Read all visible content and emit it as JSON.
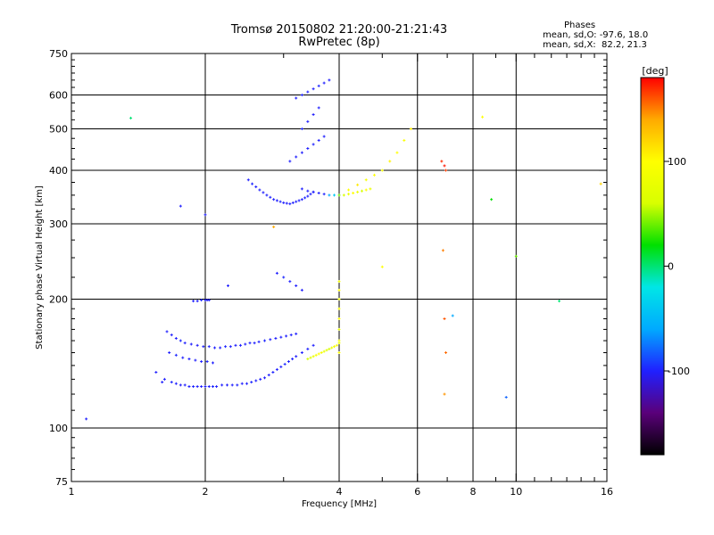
{
  "chart_data": {
    "type": "scatter",
    "title": "Tromsø 20150802 21:20:00-21:21:43",
    "subtitle": "RwPretec (8p)",
    "stats_heading": "Phases",
    "stats_line1": "mean, sd,O: -97.6, 18.0",
    "stats_line2": "mean, sd,X:  82.2, 21.3",
    "xlabel": "Frequency [MHz]",
    "ylabel": "Stationary phase Virtual Height [km]",
    "colorbar_label": "[deg]",
    "x_scale": "log",
    "y_scale": "log",
    "xlim": [
      1,
      16
    ],
    "ylim": [
      75,
      750
    ],
    "xticks": [
      1,
      2,
      4,
      6,
      8,
      10,
      16
    ],
    "xtick_labels": [
      "1",
      "2",
      "4",
      "6",
      "8",
      "10",
      "16"
    ],
    "yticks": [
      75,
      100,
      200,
      300,
      400,
      500,
      600,
      750
    ],
    "ytick_labels": [
      "75",
      "100",
      "200",
      "300",
      "400",
      "500",
      "600",
      "750"
    ],
    "grid_x": [
      2,
      4,
      6,
      8,
      10
    ],
    "grid_y": [
      100,
      200,
      300,
      400,
      500,
      600
    ],
    "colorbar_range": [
      -180,
      180
    ],
    "colorbar_ticks": [
      100,
      0,
      -100
    ],
    "colorbar_tick_labels": [
      "100",
      "0",
      "-100"
    ],
    "colorscale": [
      "#000000",
      "#5a007a",
      "#2020ff",
      "#00aaff",
      "#00e6e6",
      "#00e000",
      "#d8ff00",
      "#ffff00",
      "#ffaa00",
      "#ff0000"
    ],
    "series": [
      {
        "x": [
          1.6,
          1.62,
          1.68,
          1.72,
          1.76,
          1.8,
          1.84,
          1.88,
          1.92,
          1.96,
          2.0,
          2.04,
          2.08,
          2.12,
          2.18,
          2.24,
          2.3,
          2.36,
          2.42,
          2.48,
          2.54,
          2.6,
          2.66,
          2.72,
          2.78,
          2.84,
          2.9,
          2.96,
          3.02,
          3.08,
          3.14,
          3.2,
          3.3,
          3.4,
          3.5
        ],
        "y": [
          128,
          130,
          128,
          127,
          126,
          126,
          125,
          125,
          125,
          125,
          125,
          125,
          125,
          125,
          126,
          126,
          126,
          126,
          127,
          127,
          128,
          129,
          130,
          131,
          133,
          135,
          137,
          139,
          141,
          143,
          145,
          147,
          150,
          153,
          156
        ],
        "phase": [
          -100,
          -100,
          -98,
          -100,
          -102,
          -100,
          -100,
          -99,
          -100,
          -101,
          -100,
          -100,
          -98,
          -100,
          -100,
          -101,
          -100,
          -99,
          -100,
          -100,
          -98,
          -100,
          -100,
          -102,
          -100,
          -99,
          -100,
          -100,
          -97,
          -100,
          -100,
          -101,
          -100,
          -99,
          -100
        ]
      },
      {
        "x": [
          1.64,
          1.68,
          1.72,
          1.76,
          1.8,
          1.86,
          1.92,
          1.98,
          2.04,
          2.1,
          2.16,
          2.22,
          2.28,
          2.34,
          2.4,
          2.46,
          2.52,
          2.58,
          2.64,
          2.72,
          2.8,
          2.88,
          2.96,
          3.04,
          3.12,
          3.2
        ],
        "y": [
          168,
          165,
          162,
          160,
          158,
          157,
          156,
          155,
          155,
          154,
          154,
          155,
          155,
          156,
          156,
          157,
          158,
          158,
          159,
          160,
          161,
          162,
          163,
          164,
          165,
          166
        ],
        "phase": [
          -100,
          -101,
          -100,
          -98,
          -100,
          -100,
          -102,
          -100,
          -99,
          -100,
          -100,
          -98,
          -100,
          -101,
          -100,
          -100,
          -99,
          -100,
          -100,
          -98,
          -100,
          -101,
          -100,
          -100,
          -99,
          -100
        ]
      },
      {
        "x": [
          1.66,
          1.72,
          1.78,
          1.84,
          1.9,
          1.96,
          2.02,
          2.08
        ],
        "y": [
          150,
          148,
          146,
          145,
          144,
          143,
          143,
          142
        ],
        "phase": [
          -100,
          -98,
          -100,
          -100,
          -101,
          -100,
          -99,
          -100
        ]
      },
      {
        "x": [
          1.88,
          1.92,
          1.96,
          2.0,
          2.02,
          2.04
        ],
        "y": [
          198,
          198,
          199,
          199,
          199,
          199
        ],
        "phase": [
          -100,
          -100,
          -98,
          -100,
          -101,
          -100
        ]
      },
      {
        "x": [
          2.5,
          2.55,
          2.6,
          2.65,
          2.7,
          2.75,
          2.8,
          2.85,
          2.9,
          2.95,
          3.0,
          3.05,
          3.1,
          3.15,
          3.2,
          3.25,
          3.3,
          3.35,
          3.4,
          3.45,
          3.5
        ],
        "y": [
          380,
          372,
          366,
          360,
          355,
          350,
          346,
          342,
          340,
          338,
          336,
          335,
          334,
          336,
          338,
          340,
          342,
          345,
          348,
          352,
          356
        ],
        "phase": [
          -100,
          -98,
          -100,
          -100,
          -101,
          -100,
          -99,
          -100,
          -100,
          -98,
          -100,
          -101,
          -100,
          -100,
          -99,
          -100,
          -100,
          -98,
          -100,
          -101,
          -100
        ]
      },
      {
        "x": [
          3.1,
          3.2,
          3.3,
          3.4,
          3.5,
          3.6,
          3.7,
          3.3,
          3.4,
          3.5,
          3.6,
          3.2,
          3.3,
          3.4,
          3.5,
          3.6,
          3.7,
          3.8
        ],
        "y": [
          420,
          430,
          440,
          450,
          460,
          470,
          480,
          500,
          520,
          540,
          560,
          590,
          600,
          610,
          620,
          630,
          640,
          650
        ],
        "phase": [
          -100,
          -100,
          -101,
          -100,
          -99,
          -100,
          -100,
          -98,
          -100,
          -101,
          -100,
          -100,
          -99,
          -100,
          -100,
          -98,
          -100,
          -101
        ]
      },
      {
        "x": [
          3.3,
          3.4,
          3.5,
          3.6,
          3.7,
          3.8,
          3.9,
          4.0,
          4.1,
          4.2,
          4.3,
          4.4,
          4.5,
          4.6,
          4.7
        ],
        "y": [
          362,
          358,
          356,
          354,
          352,
          350,
          350,
          350,
          350,
          352,
          354,
          356,
          358,
          360,
          362
        ],
        "phase": [
          -100,
          -100,
          -101,
          -100,
          -99,
          -60,
          -40,
          40,
          60,
          80,
          100,
          80,
          60,
          100,
          80
        ]
      },
      {
        "x": [
          3.4,
          3.45,
          3.5,
          3.55,
          3.6,
          3.65,
          3.7,
          3.75,
          3.8,
          3.85,
          3.9,
          3.95,
          4.0
        ],
        "y": [
          145,
          146,
          147,
          148,
          149,
          150,
          151,
          152,
          153,
          154,
          155,
          156,
          158
        ],
        "phase": [
          60,
          70,
          80,
          90,
          100,
          90,
          80,
          70,
          60,
          80,
          90,
          100,
          80
        ]
      },
      {
        "x": [
          4.0,
          4.0,
          4.0,
          4.0,
          4.0,
          4.0,
          4.0,
          4.0
        ],
        "y": [
          150,
          160,
          170,
          180,
          190,
          200,
          210,
          220
        ],
        "phase": [
          100,
          90,
          80,
          100,
          90,
          80,
          100,
          90
        ]
      },
      {
        "x": [
          4.2,
          4.4,
          4.6,
          4.8,
          5.0,
          5.2,
          5.4,
          5.6,
          5.8
        ],
        "y": [
          360,
          370,
          380,
          390,
          400,
          420,
          440,
          470,
          500
        ],
        "phase": [
          100,
          110,
          90,
          100,
          95,
          105,
          100,
          95,
          110
        ]
      },
      {
        "x": [
          6.8,
          6.9,
          6.95,
          6.85,
          6.9,
          6.95,
          6.9
        ],
        "y": [
          420,
          410,
          400,
          260,
          180,
          150,
          120
        ],
        "phase": [
          170,
          175,
          165,
          150,
          160,
          155,
          145
        ]
      },
      {
        "x": [
          2.9,
          3.0,
          3.1,
          3.2,
          3.3
        ],
        "y": [
          230,
          225,
          220,
          215,
          210
        ],
        "phase": [
          -100,
          -98,
          -100,
          -100,
          -101
        ]
      },
      {
        "x": [
          1.08,
          1.36,
          1.55,
          1.76,
          2.0,
          2.25,
          2.85,
          5.0,
          7.2,
          8.4,
          8.8,
          9.5,
          10.0,
          12.5,
          15.5
        ],
        "y": [
          105,
          530,
          135,
          330,
          315,
          215,
          295,
          238,
          183,
          533,
          342,
          118,
          252,
          198,
          372
        ],
        "phase": [
          -100,
          0,
          -100,
          -100,
          -100,
          -100,
          140,
          100,
          -60,
          100,
          20,
          -80,
          40,
          0,
          120
        ]
      }
    ]
  }
}
